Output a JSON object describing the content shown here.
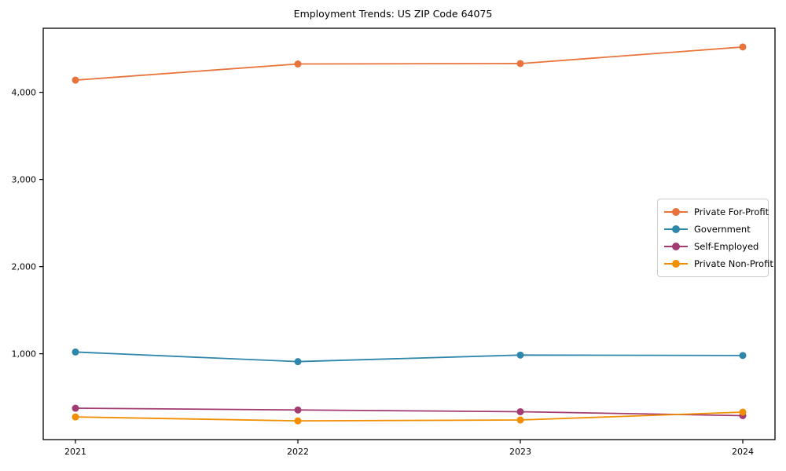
{
  "title": "Employment Trends: US ZIP Code 64075",
  "chart_data": {
    "type": "line",
    "title": "Employment Trends: US ZIP Code 64075",
    "xlabel": "",
    "ylabel": "",
    "categories": [
      "2021",
      "2022",
      "2023",
      "2024"
    ],
    "series": [
      {
        "name": "Private For-Profit",
        "color": "#E8743B",
        "values": [
          4140,
          4325,
          4330,
          4520
        ]
      },
      {
        "name": "Government",
        "color": "#2E86AB",
        "values": [
          1020,
          910,
          985,
          980
        ]
      },
      {
        "name": "Self-Employed",
        "color": "#A23B72",
        "values": [
          375,
          355,
          335,
          290
        ]
      },
      {
        "name": "Private Non-Profit",
        "color": "#F18F01",
        "values": [
          275,
          230,
          240,
          330
        ]
      }
    ],
    "y_ticks": [
      {
        "value": 1000,
        "label": "1,000"
      },
      {
        "value": 2000,
        "label": "2,000"
      },
      {
        "value": 3000,
        "label": "3,000"
      },
      {
        "value": 4000,
        "label": "4,000"
      }
    ],
    "ylim": [
      15,
      4735
    ],
    "grid": false,
    "legend_position": "center-right",
    "axis_color": "#000000",
    "background_color": "#ffffff"
  }
}
